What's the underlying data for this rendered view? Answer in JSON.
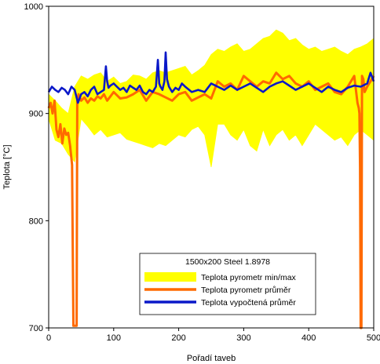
{
  "chart_data": {
    "type": "line",
    "xlabel": "Pořadí taveb",
    "ylabel": "Teplota [°C]",
    "xlim": [
      0,
      500
    ],
    "ylim": [
      700,
      1000
    ],
    "x_ticks": [
      0,
      100,
      200,
      300,
      400,
      500
    ],
    "y_ticks": [
      700,
      800,
      900,
      1000
    ],
    "grid": false,
    "legend": {
      "title": "1500x200 Steel 1.8978",
      "placement": "lower-center",
      "entries": [
        {
          "label": "Teplota pyrometr min/max",
          "color": "#ffff00"
        },
        {
          "label": "Teplota pyrometr průměr",
          "color": "#ff6a00"
        },
        {
          "label": "Teplota vypočtená průměr",
          "color": "#0a18c8"
        }
      ]
    },
    "series": [
      {
        "name": "Teplota pyrometr min/max",
        "color": "#ffff00",
        "x": [
          0,
          10,
          20,
          30,
          40,
          50,
          60,
          70,
          80,
          90,
          100,
          110,
          120,
          130,
          140,
          150,
          160,
          170,
          180,
          190,
          200,
          210,
          220,
          230,
          240,
          250,
          260,
          270,
          280,
          290,
          300,
          310,
          320,
          330,
          340,
          350,
          360,
          370,
          380,
          390,
          400,
          410,
          420,
          430,
          440,
          450,
          460,
          470,
          480,
          490,
          500
        ],
        "low": [
          895,
          875,
          872,
          862,
          855,
          895,
          888,
          880,
          885,
          878,
          880,
          882,
          876,
          874,
          872,
          870,
          868,
          872,
          870,
          875,
          880,
          878,
          885,
          888,
          880,
          850,
          890,
          890,
          880,
          875,
          885,
          870,
          865,
          885,
          870,
          880,
          885,
          875,
          880,
          870,
          880,
          890,
          885,
          880,
          875,
          878,
          870,
          880,
          885,
          880,
          875
        ],
        "high": [
          918,
          912,
          905,
          900,
          925,
          935,
          932,
          936,
          938,
          930,
          934,
          928,
          930,
          936,
          935,
          932,
          938,
          940,
          938,
          940,
          942,
          944,
          936,
          940,
          945,
          955,
          960,
          958,
          962,
          965,
          958,
          960,
          965,
          970,
          972,
          978,
          975,
          968,
          970,
          964,
          960,
          962,
          958,
          960,
          962,
          958,
          955,
          960,
          962,
          965,
          970
        ]
      },
      {
        "name": "Teplota pyrometr průměr",
        "color": "#ff6a00",
        "x": [
          0,
          3,
          6,
          9,
          12,
          15,
          18,
          21,
          24,
          27,
          30,
          33,
          36,
          37,
          38,
          40,
          42,
          43,
          44,
          46,
          50,
          55,
          60,
          65,
          70,
          75,
          80,
          85,
          90,
          95,
          100,
          110,
          120,
          130,
          140,
          150,
          160,
          170,
          180,
          190,
          200,
          210,
          220,
          230,
          240,
          250,
          260,
          270,
          280,
          290,
          300,
          310,
          320,
          330,
          340,
          350,
          360,
          370,
          380,
          390,
          400,
          410,
          420,
          430,
          440,
          450,
          460,
          470,
          475,
          477,
          478,
          479,
          480,
          481,
          482,
          484,
          486,
          490,
          495,
          500
        ],
        "y": [
          905,
          910,
          900,
          912,
          885,
          878,
          890,
          872,
          886,
          880,
          882,
          870,
          852,
          780,
          702,
          702,
          702,
          702,
          912,
          918,
          912,
          915,
          910,
          914,
          912,
          916,
          914,
          918,
          912,
          916,
          920,
          914,
          915,
          918,
          922,
          912,
          920,
          918,
          915,
          912,
          918,
          920,
          912,
          915,
          918,
          914,
          930,
          925,
          928,
          922,
          935,
          930,
          925,
          930,
          928,
          938,
          932,
          935,
          928,
          925,
          930,
          922,
          925,
          928,
          920,
          918,
          925,
          935,
          910,
          905,
          900,
          850,
          700,
          700,
          935,
          932,
          920,
          925,
          930,
          935
        ]
      },
      {
        "name": "Teplota vypočtená průměr",
        "color": "#0a18c8",
        "x": [
          0,
          5,
          10,
          15,
          20,
          25,
          30,
          35,
          40,
          45,
          50,
          55,
          60,
          65,
          70,
          75,
          80,
          85,
          88,
          90,
          92,
          95,
          100,
          105,
          110,
          115,
          120,
          125,
          130,
          135,
          140,
          145,
          150,
          155,
          160,
          165,
          168,
          170,
          172,
          175,
          178,
          180,
          182,
          185,
          190,
          195,
          200,
          205,
          210,
          220,
          230,
          240,
          250,
          260,
          270,
          280,
          290,
          300,
          310,
          320,
          330,
          340,
          350,
          360,
          370,
          380,
          390,
          400,
          410,
          420,
          430,
          440,
          450,
          460,
          470,
          480,
          490,
          495,
          500
        ],
        "y": [
          920,
          925,
          922,
          920,
          924,
          922,
          918,
          925,
          922,
          910,
          918,
          920,
          916,
          922,
          925,
          918,
          920,
          922,
          944,
          930,
          924,
          926,
          928,
          925,
          922,
          924,
          920,
          926,
          924,
          922,
          926,
          920,
          918,
          922,
          920,
          925,
          950,
          928,
          925,
          922,
          930,
          957,
          932,
          925,
          920,
          924,
          922,
          928,
          925,
          920,
          922,
          920,
          928,
          925,
          922,
          926,
          922,
          925,
          928,
          924,
          920,
          925,
          928,
          930,
          926,
          922,
          925,
          928,
          924,
          920,
          925,
          922,
          920,
          924,
          926,
          925,
          928,
          938,
          930
        ]
      }
    ]
  }
}
